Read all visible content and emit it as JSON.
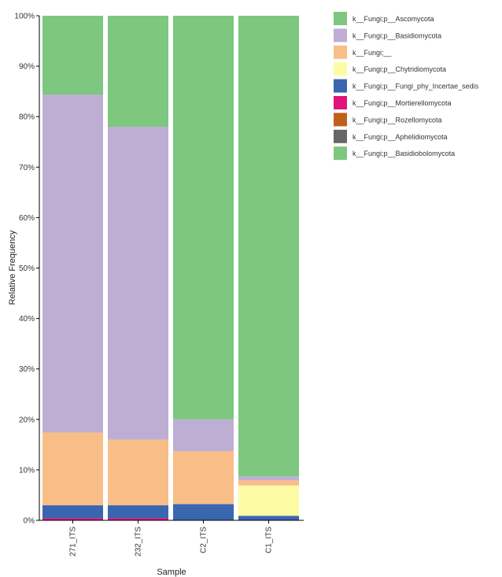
{
  "chart_data": {
    "type": "bar",
    "stacked": true,
    "xlabel": "Sample",
    "ylabel": "Relative Frequency",
    "ylim": [
      0,
      100
    ],
    "yticks": [
      "0%",
      "10%",
      "20%",
      "30%",
      "40%",
      "50%",
      "60%",
      "70%",
      "80%",
      "90%",
      "100%"
    ],
    "categories": [
      "271_ITS",
      "232_ITS",
      "C2_ITS",
      "C1_ITS"
    ],
    "legend_position": "top-right",
    "series": [
      {
        "name": "k__Fungi;p__Mortierellomycota",
        "color": "#e0147a",
        "values": [
          0.4,
          0.4,
          0.0,
          0.0
        ]
      },
      {
        "name": "k__Fungi;p__Fungi_phy_Incertae_sedis",
        "color": "#3a66b0",
        "values": [
          2.6,
          2.6,
          3.2,
          0.9
        ]
      },
      {
        "name": "k__Fungi;p__Chytridiomycota",
        "color": "#fdfca4",
        "values": [
          0.0,
          0.0,
          0.0,
          6.0
        ]
      },
      {
        "name": "k__Fungi;__",
        "color": "#f9bd88",
        "values": [
          14.4,
          13.0,
          10.5,
          1.0
        ]
      },
      {
        "name": "k__Fungi;p__Basidiomycota",
        "color": "#bfaed4",
        "values": [
          67.0,
          62.0,
          6.3,
          0.8
        ]
      },
      {
        "name": "k__Fungi;p__Ascomycota",
        "color": "#7dc77e",
        "values": [
          15.6,
          22.0,
          80.0,
          91.3
        ]
      }
    ],
    "legend": [
      {
        "label": "k__Fungi;p__Ascomycota",
        "color": "#7dc77e"
      },
      {
        "label": "k__Fungi;p__Basidiomycota",
        "color": "#bfaed4"
      },
      {
        "label": "k__Fungi;__",
        "color": "#f9bd88"
      },
      {
        "label": "k__Fungi;p__Chytridiomycota",
        "color": "#fdfca4"
      },
      {
        "label": "k__Fungi;p__Fungi_phy_Incertae_sedis",
        "color": "#3a66b0"
      },
      {
        "label": "k__Fungi;p__Mortierellomycota",
        "color": "#e0147a"
      },
      {
        "label": "k__Fungi;p__Rozellomycota",
        "color": "#c0601a"
      },
      {
        "label": "k__Fungi;p__Aphelidiomycota",
        "color": "#666666"
      },
      {
        "label": "k__Fungi;p__Basidiobolomycota",
        "color": "#7dc77e"
      }
    ]
  }
}
